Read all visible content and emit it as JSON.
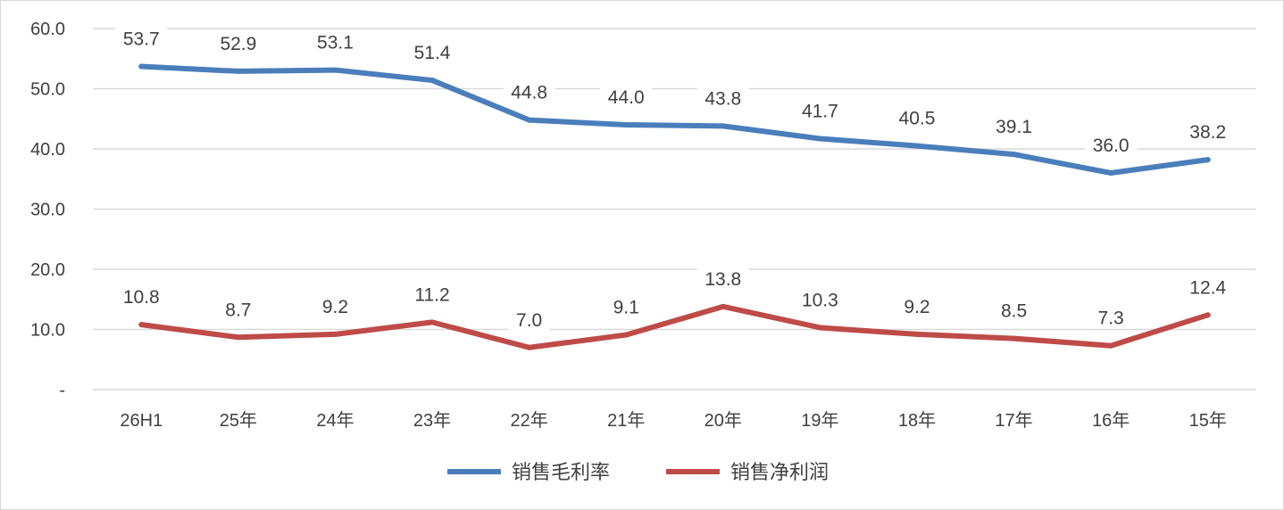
{
  "chart_data": {
    "type": "line",
    "categories": [
      "26H1",
      "25年",
      "24年",
      "23年",
      "22年",
      "21年",
      "20年",
      "19年",
      "18年",
      "17年",
      "16年",
      "15年"
    ],
    "series": [
      {
        "name": "销售毛利率",
        "color": "#4a7ebb",
        "values": [
          53.7,
          52.9,
          53.1,
          51.4,
          44.8,
          44.0,
          43.8,
          41.7,
          40.5,
          39.1,
          36.0,
          38.2
        ],
        "labels": [
          "53.7",
          "52.9",
          "53.1",
          "51.4",
          "44.8",
          "44.0",
          "43.8",
          "41.7",
          "40.5",
          "39.1",
          "36.0",
          "38.2"
        ]
      },
      {
        "name": "销售净利润",
        "color": "#be4b48",
        "values": [
          10.8,
          8.7,
          9.2,
          11.2,
          7.0,
          9.1,
          13.8,
          10.3,
          9.2,
          8.5,
          7.3,
          12.4
        ],
        "labels": [
          "10.8",
          "8.7",
          "9.2",
          "11.2",
          "7.0",
          "9.1",
          "13.8",
          "10.3",
          "9.2",
          "8.5",
          "7.3",
          "12.4"
        ]
      }
    ],
    "y_ticks": [
      0,
      10,
      20,
      30,
      40,
      50,
      60
    ],
    "y_tick_labels": [
      "-",
      "10.0",
      "20.0",
      "30.0",
      "40.0",
      "50.0",
      "60.0"
    ],
    "ylim": [
      0,
      60
    ],
    "grid": true,
    "gridline_color": "#d9d9d9",
    "legend_position": "bottom"
  }
}
